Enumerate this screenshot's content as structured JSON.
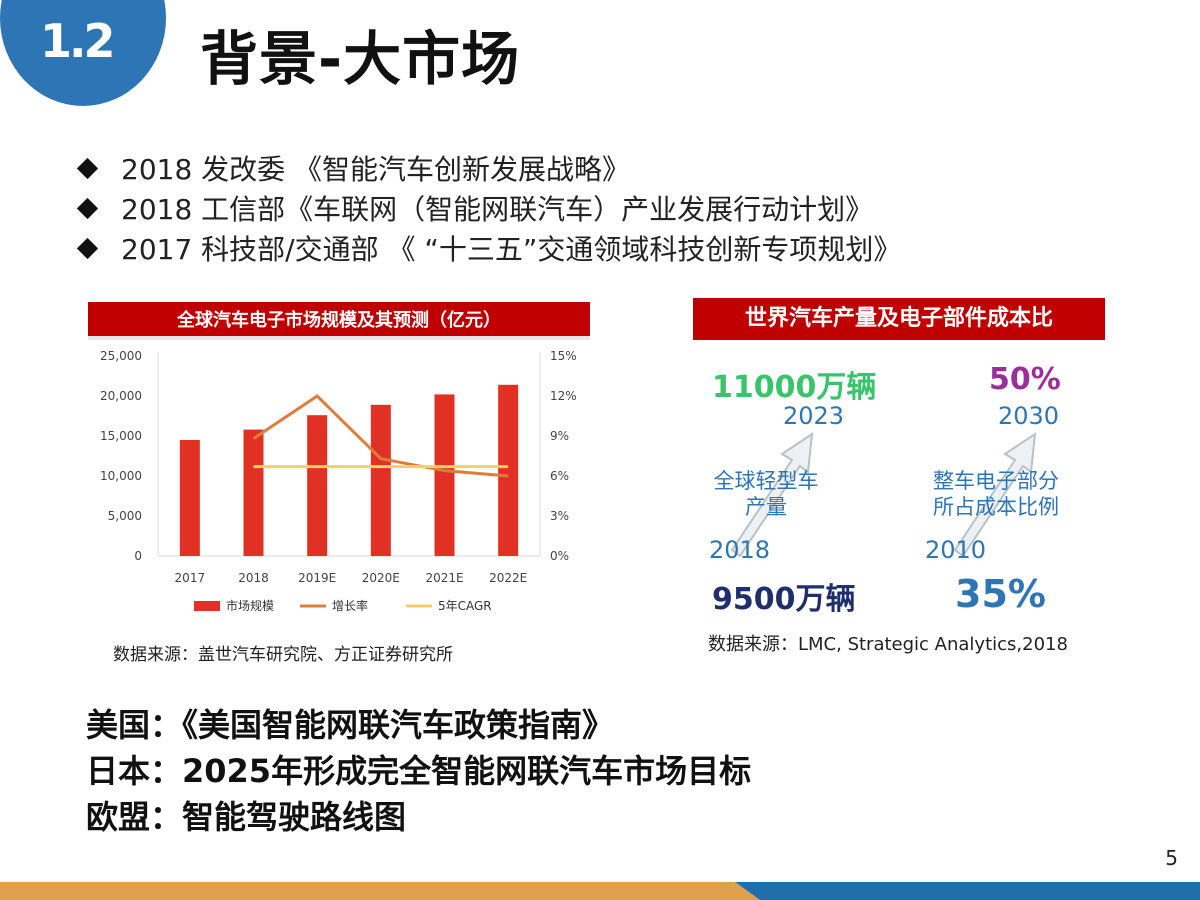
{
  "header": {
    "section_number": "1.2",
    "title": "背景-大市场"
  },
  "bullets": [
    "2018 发改委 《智能汽车创新发展战略》",
    "2018 工信部《车联网（智能网联汽车）产业发展行动计划》",
    "2017 科技部/交通部 《 “十三五”交通领域科技创新专项规划》"
  ],
  "left_panel": {
    "banner": "全球汽车电子市场规模及其预测（亿元）",
    "source": "数据来源：盖世汽车研究院、方正证券研究所"
  },
  "chart_data": {
    "type": "bar",
    "categories": [
      "2017",
      "2018",
      "2019E",
      "2020E",
      "2021E",
      "2022E"
    ],
    "series": [
      {
        "name": "市场规模",
        "type": "bar",
        "axis": "left",
        "color": "#e03124",
        "values": [
          14500,
          15800,
          17600,
          18900,
          20200,
          21400
        ]
      },
      {
        "name": "增长率",
        "type": "line",
        "axis": "right",
        "color": "#e07c3a",
        "values": [
          null,
          8.8,
          12.0,
          7.3,
          6.4,
          6.0
        ]
      },
      {
        "name": "5年CAGR",
        "type": "line",
        "axis": "right",
        "color": "#f5cf6b",
        "values": [
          null,
          6.7,
          6.7,
          6.7,
          6.7,
          6.7
        ]
      }
    ],
    "y_left": {
      "ticks": [
        "0",
        "5,000",
        "10,000",
        "15,000",
        "20,000",
        "25,000"
      ],
      "range": [
        0,
        25000
      ]
    },
    "y_right": {
      "ticks": [
        "0%",
        "3%",
        "6%",
        "9%",
        "12%",
        "15%"
      ],
      "range": [
        0,
        15
      ]
    },
    "grid": false,
    "legend_position": "bottom"
  },
  "right_panel": {
    "banner": "世界汽车产量及电子部件成本比",
    "left": {
      "target_value": "11000万辆",
      "target_year": "2023",
      "label_line1": "全球轻型车",
      "label_line2": "产量",
      "base_year": "2018",
      "base_value": "9500万辆"
    },
    "right": {
      "target_value": "50%",
      "target_year": "2030",
      "label_line1": "整车电子部分",
      "label_line2": "所占成本比例",
      "base_year": "2010",
      "base_value": "35%"
    },
    "source": "数据来源：LMC, Strategic Analytics,2018"
  },
  "policies": [
    "美国：《美国智能网联汽车政策指南》",
    "日本：2025年形成完全智能网联汽车市场目标",
    "欧盟：智能驾驶路线图"
  ],
  "page_number": "5",
  "colors": {
    "brand_blue": "#2e75b6",
    "banner_red": "#c00000",
    "footer_orange": "#e0a04e",
    "footer_blue": "#1f6fa8"
  }
}
